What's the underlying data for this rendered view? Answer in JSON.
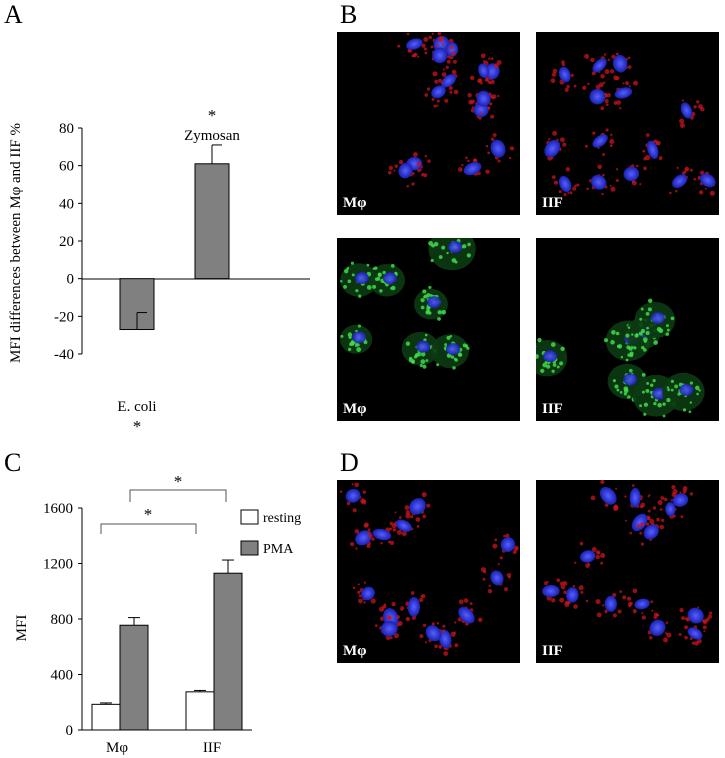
{
  "panels": {
    "A": "A",
    "B": "B",
    "C": "C",
    "D": "D"
  },
  "chart_data": [
    {
      "panel": "A",
      "type": "bar",
      "ylabel": "MFI differences between Mφ and IIF %",
      "ylim": [
        -40,
        80
      ],
      "yticks": [
        80,
        60,
        40,
        20,
        0,
        -20,
        -40
      ],
      "categories": [
        "E. coli",
        "Zymosan"
      ],
      "values": [
        -27,
        61
      ],
      "errors": [
        9,
        10
      ],
      "significance": [
        "*",
        "*"
      ],
      "bar_color": "#808080"
    },
    {
      "panel": "C",
      "type": "bar",
      "ylabel": "MFI",
      "ylim": [
        0,
        1600
      ],
      "yticks": [
        1600,
        1200,
        800,
        400,
        0
      ],
      "categories": [
        "Mφ",
        "IIF"
      ],
      "series": [
        {
          "name": "resting",
          "values": [
            185,
            275
          ],
          "errors": [
            10,
            10
          ],
          "color": "#ffffff"
        },
        {
          "name": "PMA",
          "values": [
            755,
            1130
          ],
          "errors": [
            55,
            95
          ],
          "color": "#808080"
        }
      ],
      "brackets": [
        "*",
        "*"
      ],
      "legend_placement": "top-right"
    }
  ],
  "micrographs": [
    {
      "panel": "B",
      "label": "Mφ",
      "stain": "red"
    },
    {
      "panel": "B",
      "label": "IIF",
      "stain": "red"
    },
    {
      "panel": "B",
      "label": "Mφ",
      "stain": "green"
    },
    {
      "panel": "B",
      "label": "IIF",
      "stain": "green"
    },
    {
      "panel": "D",
      "label": "Mφ",
      "stain": "red"
    },
    {
      "panel": "D",
      "label": "IIF",
      "stain": "red"
    }
  ]
}
